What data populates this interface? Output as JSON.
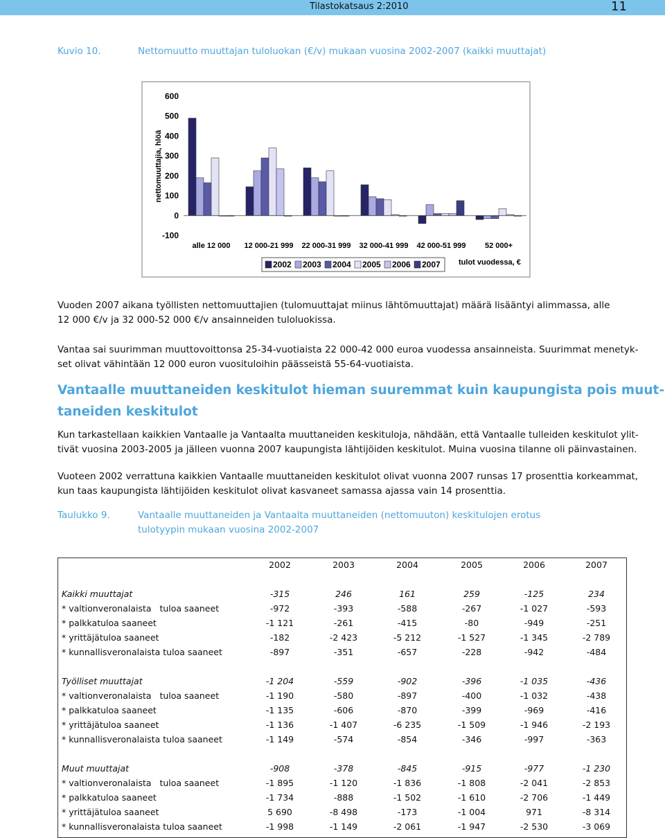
{
  "header": {
    "title": "Tilastokatsaus 2:2010",
    "page": "11"
  },
  "figure": {
    "label": "Kuvio 10.",
    "caption": "Nettomuutto muuttajan tuloluokan (€/v) mukaan vuosina 2002-2007 (kaikki muuttajat)"
  },
  "chart_data": {
    "type": "bar",
    "y_label": "nettomuuttajia, hlöä",
    "x_label": "tulot vuodessa, €",
    "categories": [
      "alle 12 000",
      "12 000-21 999",
      "22 000-31 999",
      "32 000-41 999",
      "42 000-51 999",
      "52 000+"
    ],
    "series": [
      {
        "name": "2002",
        "color": "#262466",
        "values": [
          490,
          145,
          240,
          155,
          -40,
          -20
        ]
      },
      {
        "name": "2003",
        "color": "#a9a9e3",
        "values": [
          190,
          225,
          190,
          95,
          55,
          -15
        ]
      },
      {
        "name": "2004",
        "color": "#5a5aa8",
        "values": [
          165,
          290,
          170,
          85,
          10,
          -15
        ]
      },
      {
        "name": "2005",
        "color": "#e3e3f7",
        "values": [
          290,
          340,
          225,
          80,
          10,
          35
        ]
      },
      {
        "name": "2006",
        "color": "#c4c4ee",
        "values": [
          0,
          235,
          0,
          5,
          10,
          5
        ]
      },
      {
        "name": "2007",
        "color": "#3c3c80",
        "values": [
          0,
          0,
          0,
          0,
          75,
          0
        ]
      }
    ],
    "ylim": [
      -100,
      600
    ],
    "yticks": [
      -100,
      0,
      100,
      200,
      300,
      400,
      500,
      600
    ]
  },
  "paragraphs": [
    [
      "Vuoden 2007 aikana työllisten nettomuuttajien (tulomuuttajat miinus lähtömuuttajat) määrä lisääntyi alimmassa, alle",
      "12 000 €/v ja 32 000-52 000 €/v ansainneiden tuloluokissa."
    ],
    [
      "Vantaa sai suurimman muuttovoittonsa 25-34-vuotiaista 22 000-42 000 euroa vuodessa ansainneista. Suurimmat menetyk-",
      "set olivat vähintään 12 000 euron vuosituloihin päässeistä 55-64-vuotiaista."
    ]
  ],
  "heading": [
    "Vantaalle muuttaneiden keskitulot hieman suuremmat kuin kaupungista pois muut-",
    "taneiden keskitulot"
  ],
  "paragraphs2": [
    [
      "Kun tarkastellaan kaikkien Vantaalle ja Vantaalta muuttaneiden keskituloja, nähdään, että Vantaalle tulleiden keskitulot ylit-",
      "tivät vuosina 2003-2005 ja jälleen vuonna 2007 kaupungista lähtijöiden keskitulot. Muina vuosina tilanne oli päinvastainen."
    ],
    [
      "Vuoteen 2002 verrattuna kaikkien Vantaalle muuttaneiden keskitulot olivat vuonna 2007 runsas 17 prosenttia korkeammat,",
      "kun taas kaupungista lähtijöiden keskitulot olivat kasvaneet samassa ajassa vain 14 prosenttia."
    ]
  ],
  "table_caption": {
    "label": "Taulukko 9.",
    "lines": [
      "Vantaalle muuttaneiden ja Vantaalta muuttaneiden (nettomuuton) keskitulojen erotus",
      "tulotyypin mukaan vuosina 2002-2007"
    ]
  },
  "table": {
    "header": [
      "2002",
      "2003",
      "2004",
      "2005",
      "2006",
      "2007"
    ],
    "groups": [
      {
        "total": [
          "Kaikki muuttajat",
          "-315",
          "246",
          "161",
          "259",
          "-125",
          "234"
        ],
        "rows": [
          [
            "* valtionveronalaista   tuloa saaneet",
            "-972",
            "-393",
            "-588",
            "-267",
            "-1 027",
            "-593"
          ],
          [
            "* palkkatuloa saaneet",
            "-1 121",
            "-261",
            "-415",
            "-80",
            "-949",
            "-251"
          ],
          [
            "* yrittäjätuloa saaneet",
            "-182",
            "-2 423",
            "-5 212",
            "-1 527",
            "-1 345",
            "-2 789"
          ],
          [
            "* kunnallisveronalaista tuloa saaneet",
            "-897",
            "-351",
            "-657",
            "-228",
            "-942",
            "-484"
          ]
        ]
      },
      {
        "total": [
          "Työlliset muuttajat",
          "-1 204",
          "-559",
          "-902",
          "-396",
          "-1 035",
          "-436"
        ],
        "rows": [
          [
            "* valtionveronalaista   tuloa saaneet",
            "-1 190",
            "-580",
            "-897",
            "-400",
            "-1 032",
            "-438"
          ],
          [
            "* palkkatuloa saaneet",
            "-1 135",
            "-606",
            "-870",
            "-399",
            "-969",
            "-416"
          ],
          [
            "* yrittäjätuloa saaneet",
            "-1 136",
            "-1 407",
            "-6 235",
            "-1 509",
            "-1 946",
            "-2 193"
          ],
          [
            "* kunnallisveronalaista tuloa saaneet",
            "-1 149",
            "-574",
            "-854",
            "-346",
            "-997",
            "-363"
          ]
        ]
      },
      {
        "total": [
          "Muut muuttajat",
          "-908",
          "-378",
          "-845",
          "-915",
          "-977",
          "-1 230"
        ],
        "rows": [
          [
            "* valtionveronalaista   tuloa saaneet",
            "-1 895",
            "-1 120",
            "-1 836",
            "-1 808",
            "-2 041",
            "-2 853"
          ],
          [
            "* palkkatuloa saaneet",
            "-1 734",
            "-888",
            "-1 502",
            "-1 610",
            "-2 706",
            "-1 449"
          ],
          [
            "* yrittäjätuloa saaneet",
            "5 690",
            "-8 498",
            "-173",
            "-1 004",
            "971",
            "-8 314"
          ],
          [
            "* kunnallisveronalaista tuloa saaneet",
            "-1 998",
            "-1 149",
            "-2 061",
            "-1 947",
            "-2 530",
            "-3 069"
          ]
        ]
      }
    ]
  }
}
